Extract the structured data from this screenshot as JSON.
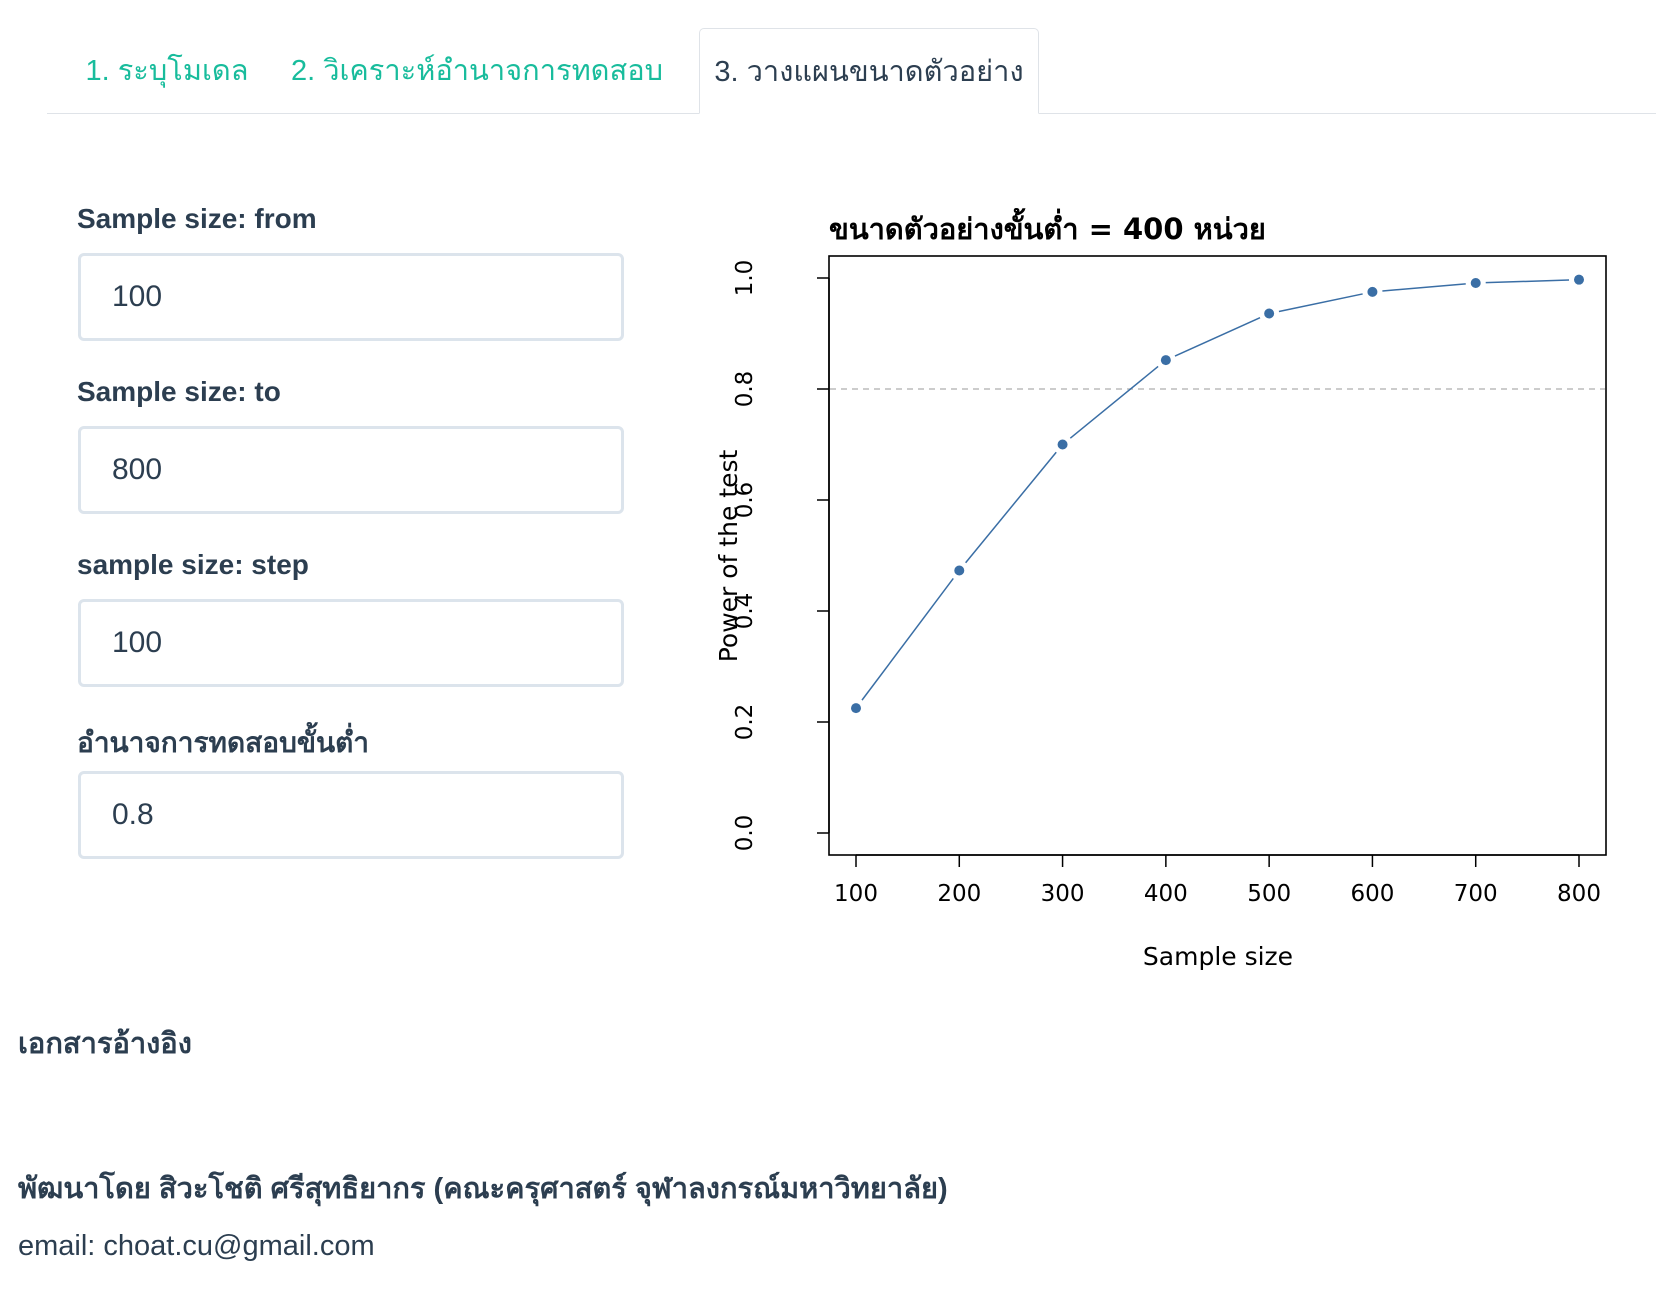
{
  "tabs": [
    {
      "label": "1. ระบุโมเดล",
      "active": false
    },
    {
      "label": "2. วิเคราะห์อำนาจการทดสอบ",
      "active": false
    },
    {
      "label": "3. วางแผนขนาดตัวอย่าง",
      "active": true
    }
  ],
  "inputs": {
    "from_label": "Sample size: from",
    "from_value": "100",
    "to_label": "Sample size: to",
    "to_value": "800",
    "step_label": "sample size: step",
    "step_value": "100",
    "power_label": "อำนาจการทดสอบขั้นต่ำ",
    "power_value": "0.8"
  },
  "chart_data": {
    "type": "line",
    "title": "ขนาดตัวอย่างขั้นต่ำ =  400 หน่วย",
    "xlabel": "Sample size",
    "ylabel": "Power of the test",
    "x": [
      100,
      200,
      300,
      400,
      500,
      600,
      700,
      800
    ],
    "y": [
      0.225,
      0.473,
      0.7,
      0.852,
      0.936,
      0.975,
      0.991,
      0.997
    ],
    "xlim": [
      100,
      800
    ],
    "ylim": [
      0,
      1
    ],
    "xticks": [
      "100",
      "200",
      "300",
      "400",
      "500",
      "600",
      "700",
      "800"
    ],
    "yticks": [
      "0.0",
      "0.2",
      "0.4",
      "0.6",
      "0.8",
      "1.0"
    ],
    "reference_line": 0.8,
    "color": "#3a6ea5",
    "reference_color": "#bbbbbb"
  },
  "footer": {
    "references_heading": "เอกสารอ้างอิง",
    "developer": "พัฒนาโดย สิวะโชติ ศรีสุทธิยากร (คณะครุศาสตร์ จุฬาลงกรณ์มหาวิทยาลัย)",
    "email": "email: choat.cu@gmail.com"
  },
  "colors": {
    "accent": "#18bc9c",
    "text": "#2c3e50",
    "input_border": "#dce4ec"
  }
}
